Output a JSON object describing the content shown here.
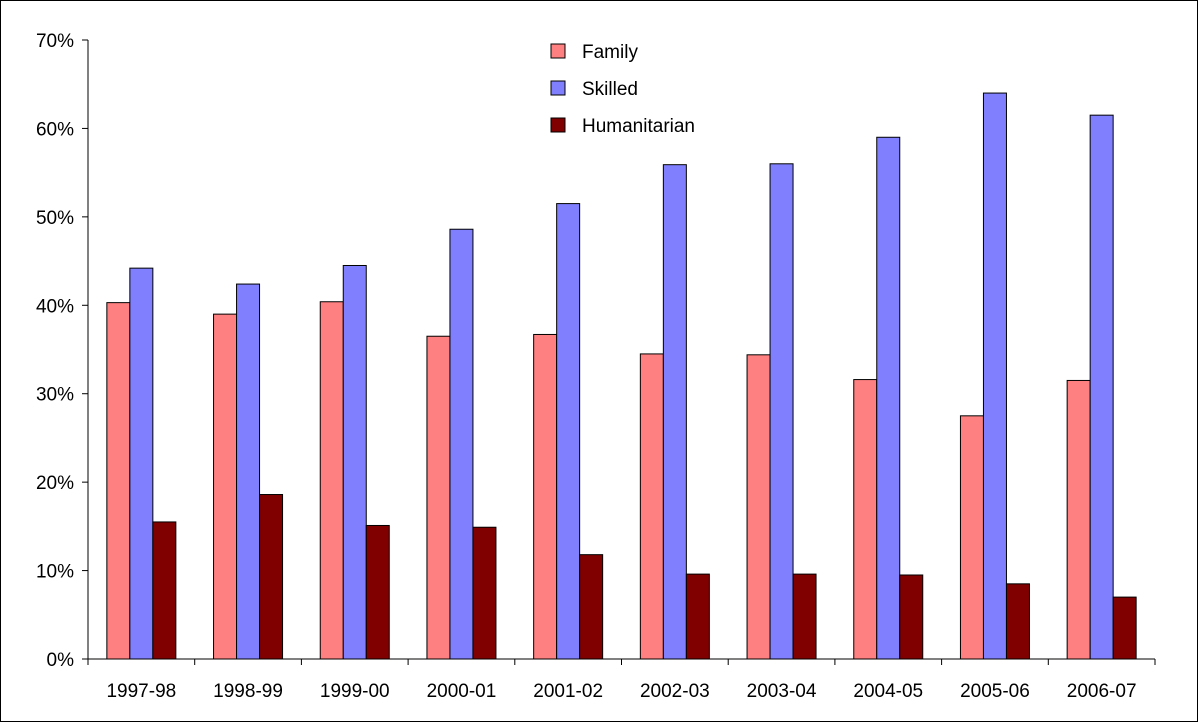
{
  "chart_data": {
    "type": "bar",
    "title": "",
    "xlabel": "",
    "ylabel": "",
    "ylim": [
      0,
      70
    ],
    "y_ticks": [
      "0%",
      "10%",
      "20%",
      "30%",
      "40%",
      "50%",
      "60%",
      "70%"
    ],
    "y_tick_values": [
      0,
      10,
      20,
      30,
      40,
      50,
      60,
      70
    ],
    "categories": [
      "1997-98",
      "1998-99",
      "1999-00",
      "2000-01",
      "2001-02",
      "2002-03",
      "2003-04",
      "2004-05",
      "2005-06",
      "2006-07"
    ],
    "series": [
      {
        "name": "Family",
        "color": "#FF8080",
        "values": [
          40.3,
          39.0,
          40.4,
          36.5,
          36.7,
          34.5,
          34.4,
          31.6,
          27.5,
          31.5
        ]
      },
      {
        "name": "Skilled",
        "color": "#8080FF",
        "values": [
          44.2,
          42.4,
          44.5,
          48.6,
          51.5,
          55.9,
          56.0,
          59.0,
          64.0,
          61.5
        ]
      },
      {
        "name": "Humanitarian",
        "color": "#800000",
        "values": [
          15.5,
          18.6,
          15.1,
          14.9,
          11.8,
          9.6,
          9.6,
          9.5,
          8.5,
          7.0
        ]
      }
    ],
    "grid": false,
    "legend_position": "top-center"
  }
}
